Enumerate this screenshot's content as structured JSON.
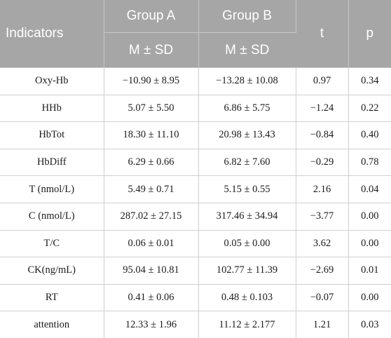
{
  "header": {
    "indicators": "Indicators",
    "group_a": "Group A",
    "group_b": "Group B",
    "t": "t",
    "p": "p",
    "sub_a": "M ± SD",
    "sub_b": "M ± SD"
  },
  "rows": [
    {
      "indicator": "Oxy-Hb",
      "a": "−10.90 ± 8.95",
      "b": "−13.28 ± 10.08",
      "t": "0.97",
      "p": "0.34"
    },
    {
      "indicator": "HHb",
      "a": "5.07 ± 5.50",
      "b": "6.86 ± 5.75",
      "t": "−1.24",
      "p": "0.22"
    },
    {
      "indicator": "HbTot",
      "a": "18.30 ± 11.10",
      "b": "20.98 ± 13.43",
      "t": "−0.84",
      "p": "0.40"
    },
    {
      "indicator": "HbDiff",
      "a": "6.29 ± 0.66",
      "b": "6.82 ± 7.60",
      "t": "−0.29",
      "p": "0.78"
    },
    {
      "indicator": "T (nmol/L)",
      "a": "5.49 ± 0.71",
      "b": "5.15 ± 0.55",
      "t": "2.16",
      "p": "0.04"
    },
    {
      "indicator": "C (nmol/L)",
      "a": "287.02 ± 27.15",
      "b": "317.46 ± 34.94",
      "t": "−3.77",
      "p": "0.00"
    },
    {
      "indicator": "T/C",
      "a": "0.06 ± 0.01",
      "b": "0.05 ± 0.00",
      "t": "3.62",
      "p": "0.00"
    },
    {
      "indicator": "CK(ng/mL)",
      "a": "95.04 ± 10.81",
      "b": "102.77 ± 11.39",
      "t": "−2.69",
      "p": "0.01"
    },
    {
      "indicator": "RT",
      "a": "0.41 ± 0.06",
      "b": "0.48 ± 0.103",
      "t": "−0.07",
      "p": "0.00"
    },
    {
      "indicator": "attention",
      "a": "12.33 ± 1.96",
      "b": "11.12 ± 2.177",
      "t": "1.21",
      "p": "0.03"
    }
  ]
}
